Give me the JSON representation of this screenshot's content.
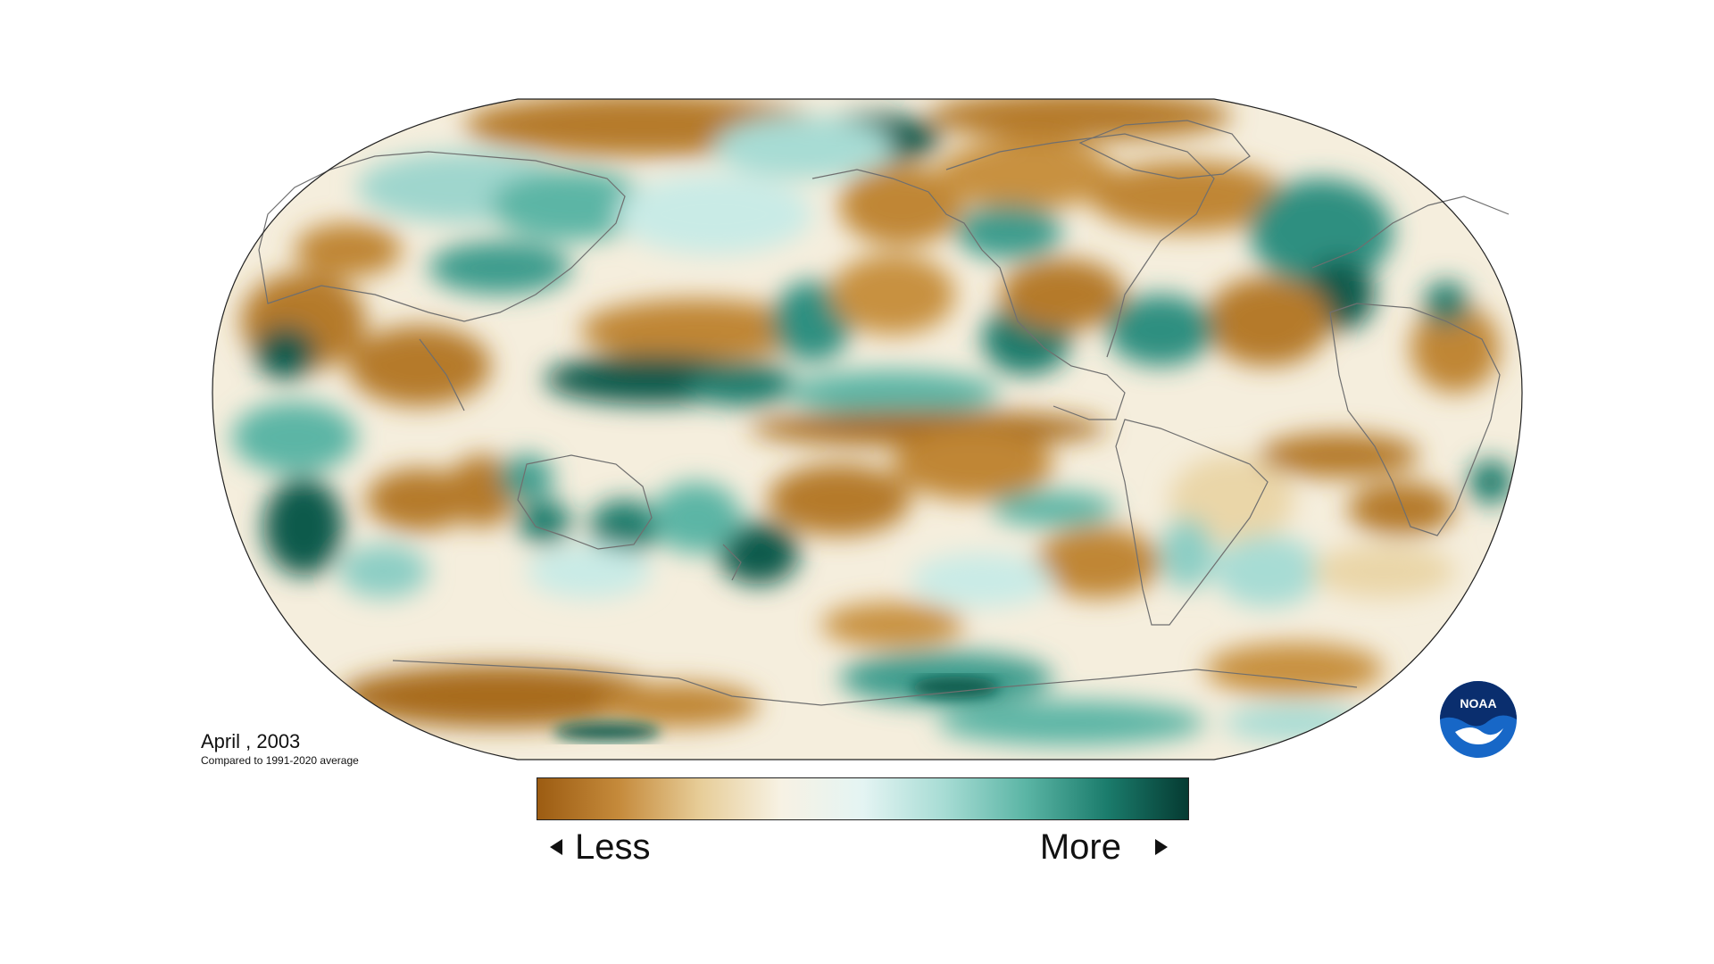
{
  "caption": {
    "title": "April , 2003",
    "subtitle": "Compared to 1991-2020 average"
  },
  "legend": {
    "less_label": "Less",
    "more_label": "More",
    "gradient_colors": [
      "#9c5c12",
      "#c58a3b",
      "#e7cd98",
      "#f7f2e4",
      "#e4f4f3",
      "#a7dcd4",
      "#5bb5a5",
      "#1b7c6c",
      "#053b32"
    ]
  },
  "logo": {
    "text": "NOAA",
    "primary_color": "#1767c7",
    "accent_color": "#0a2e6e"
  },
  "map": {
    "projection": "Robinson",
    "variable": "precipitation anomaly",
    "colors": {
      "dry_strong": "#9c5c12",
      "dry": "#c8913f",
      "dry_light": "#ead6a8",
      "neutral": "#faf8f0",
      "wet_light": "#c9ebe6",
      "wet": "#5bb5a5",
      "wet_strong": "#0b5a4c",
      "coastline": "#6f6f6f",
      "border": "#222222"
    }
  }
}
